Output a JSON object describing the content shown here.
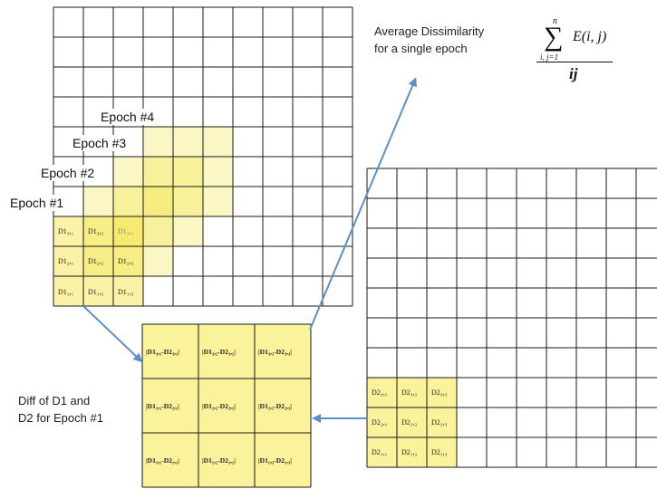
{
  "title_text": {
    "line1": "Average Dissimilarity",
    "line2": "for a single epoch"
  },
  "formula": {
    "sum_symbol": "∑",
    "upper": "n",
    "lower": "i, j=1",
    "numerator": "E(i, j)",
    "denominator": "ij"
  },
  "epochs": [
    "Epoch #4",
    "Epoch #3",
    "Epoch #2",
    "Epoch #1"
  ],
  "d1_cells": [
    [
      "D1₃,₁",
      "D1₃,₂",
      "D1₃,₃"
    ],
    [
      "D1₂,₁",
      "D1₂,₂",
      "D1₂,₃"
    ],
    [
      "D1₁,₁",
      "D1₁,₂",
      "D1₁,₃"
    ]
  ],
  "d2_cells": [
    [
      "D2₃,₁",
      "D2₃,₂",
      "D2₃,₃"
    ],
    [
      "D2₂,₁",
      "D2₂,₂",
      "D2₂,₃"
    ],
    [
      "D2₁,₁",
      "D2₁,₂",
      "D2₁,₃"
    ]
  ],
  "diff_cells": [
    [
      "|D1₃,₁-D2₃,₁|",
      "|D1₃,₂-D2₃,₂|",
      "|D1₃,₃-D2₃,₃|"
    ],
    [
      "|D1₂,₁-D2₂,₁|",
      "|D1₂,₂-D2₂,₂|",
      "|D1₂,₃-D2₂,₃|"
    ],
    [
      "|D1₁,₁-D2₁,₁|",
      "|D1₁,₂-D2₁,₂|",
      "|D1₁,₃-D2₁,₃|"
    ]
  ],
  "diff_caption": {
    "line1": "Diff of D1 and",
    "line2": "D2 for Epoch #1"
  },
  "colors": {
    "cell_yellow": "#fbf29c",
    "cell_yellow_deep": "#f3e33c",
    "cell_yellow_light": "#fbf5b8",
    "arrow": "#5b8fc9",
    "grid": "#1a1a1a"
  }
}
